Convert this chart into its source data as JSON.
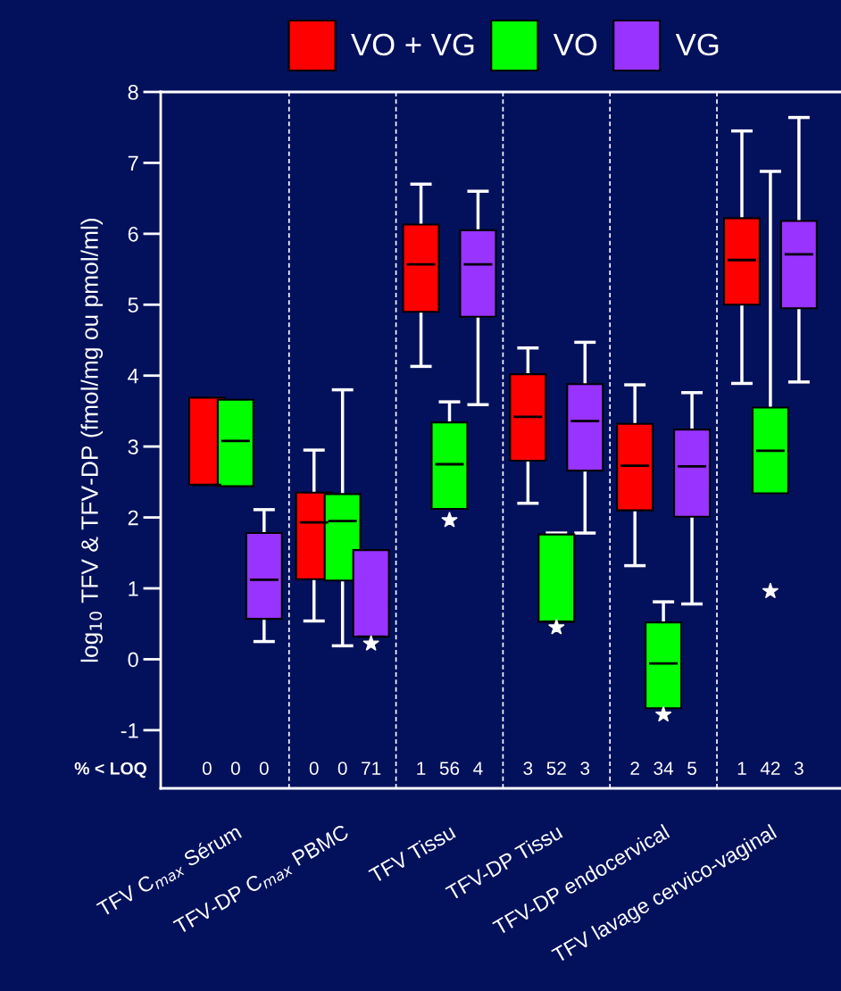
{
  "chart_data": {
    "type": "box",
    "ylabel": "log$_{10}$ TFV & TFV-DP (fmol/mg ou pmol/ml)",
    "categories": [
      "TFV C$_{max}$ Sérum",
      "TFV-DP C$_{max}$ PBMC",
      "TFV Tissu",
      "TFV-DP Tissu",
      "TFV-DP endocervical",
      "TFV lavage cervico-vaginal"
    ],
    "series": [
      {
        "name": "VO + VG",
        "color": "#ff0000",
        "boxes": [
          {
            "low": 2.46,
            "q1": 2.46,
            "median": 2.46,
            "q3": 3.69,
            "high": 3.69
          },
          {
            "low": 0.54,
            "q1": 1.13,
            "median": 1.93,
            "q3": 2.35,
            "high": 2.95
          },
          {
            "low": 4.13,
            "q1": 4.9,
            "median": 5.57,
            "q3": 6.13,
            "high": 6.7
          },
          {
            "low": 2.2,
            "q1": 2.8,
            "median": 3.42,
            "q3": 4.02,
            "high": 4.39
          },
          {
            "low": 1.32,
            "q1": 2.1,
            "median": 2.73,
            "q3": 3.32,
            "high": 3.87
          },
          {
            "low": 3.89,
            "q1": 5.0,
            "median": 5.63,
            "q3": 6.22,
            "high": 7.45
          }
        ]
      },
      {
        "name": "VO",
        "color": "#00ff00",
        "boxes": [
          {
            "low": 2.44,
            "q1": 2.44,
            "median": 3.08,
            "q3": 3.66,
            "high": 3.66
          },
          {
            "low": 0.19,
            "q1": 1.11,
            "median": 1.95,
            "q3": 2.33,
            "high": 3.8
          },
          {
            "low": 2.12,
            "q1": 2.12,
            "median": 2.75,
            "q3": 3.34,
            "high": 3.63,
            "outliers": [
              1.96
            ]
          },
          {
            "low": 0.53,
            "q1": 0.53,
            "median": 0.53,
            "q3": 1.76,
            "high": 1.78,
            "outliers": [
              0.45
            ]
          },
          {
            "low": -0.69,
            "q1": -0.69,
            "median": -0.06,
            "q3": 0.52,
            "high": 0.81,
            "outliers": [
              -0.78
            ]
          },
          {
            "low": 2.34,
            "q1": 2.34,
            "median": 2.94,
            "q3": 3.55,
            "high": 6.88,
            "outliers": [
              0.96
            ]
          }
        ]
      },
      {
        "name": "VG",
        "color": "#9933ff",
        "boxes": [
          {
            "low": 0.25,
            "q1": 0.57,
            "median": 1.12,
            "q3": 1.78,
            "high": 2.11
          },
          {
            "low": 0.32,
            "q1": 0.32,
            "median": 0.32,
            "q3": 1.54,
            "high": 1.54,
            "outliers": [
              0.22
            ]
          },
          {
            "low": 3.59,
            "q1": 4.83,
            "median": 5.57,
            "q3": 6.05,
            "high": 6.6
          },
          {
            "low": 1.78,
            "q1": 2.66,
            "median": 3.36,
            "q3": 3.88,
            "high": 4.47
          },
          {
            "low": 0.78,
            "q1": 2.01,
            "median": 2.72,
            "q3": 3.24,
            "high": 3.76
          },
          {
            "low": 3.91,
            "q1": 4.95,
            "median": 5.71,
            "q3": 6.18,
            "high": 7.64
          }
        ]
      }
    ],
    "ylim": [
      -1.82,
      8
    ],
    "yticks": [
      {
        "value": -1,
        "label": "-1"
      },
      0,
      1,
      2,
      3,
      4,
      5,
      6,
      7,
      8
    ],
    "annotations": [
      "% < LOQ",
      "0 0 0",
      "0 0 71",
      "1 56 4",
      "3 52 3",
      "2 34 5",
      "1 42 3"
    ],
    "marker": "star",
    "legend": "top",
    "grid": false
  }
}
